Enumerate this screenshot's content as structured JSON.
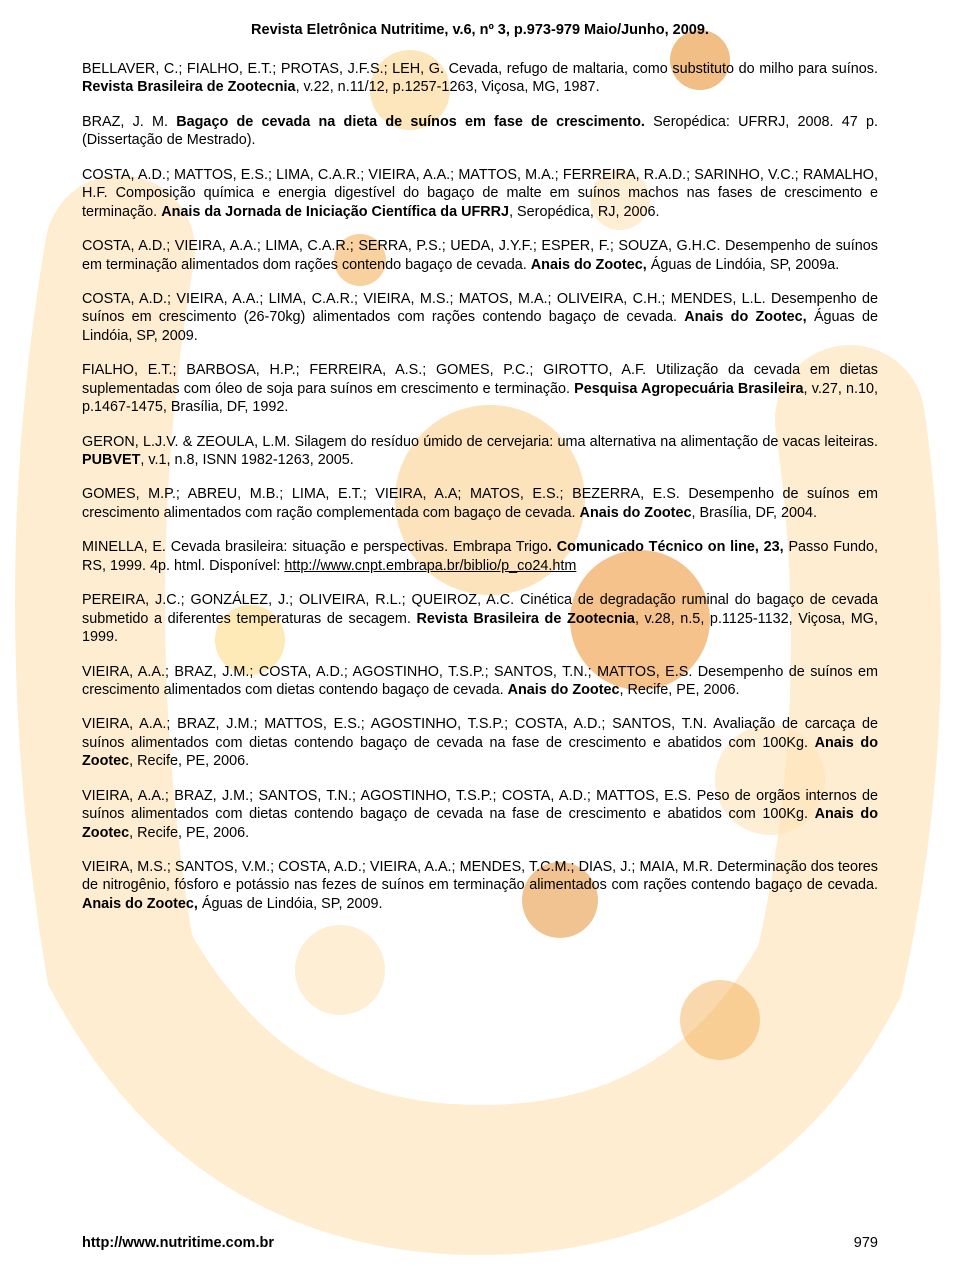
{
  "header": "Revista Eletrônica Nutritime, v.6, nº 3, p.973-979 Maio/Junho, 2009.",
  "refs": [
    "BELLAVER, C.; FIALHO, E.T.; PROTAS, J.F.S.; LEH, G. Cevada, refugo de maltaria, como substituto do milho para suínos. <b>Revista Brasileira de Zootecnia</b>, v.22, n.11/12, p.1257-1263, Viçosa, MG, 1987.",
    "BRAZ, J. M. <b>Bagaço de cevada na dieta de suínos em fase de crescimento.</b> Seropédica: UFRRJ, 2008. 47 p. (Dissertação de Mestrado).",
    "COSTA, A.D.; MATTOS, E.S.; LIMA, C.A.R.; VIEIRA, A.A.; MATTOS, M.A.; FERREIRA, R.A.D.; SARINHO, V.C.; RAMALHO, H.F. Composição química e energia digestível do bagaço de malte em suínos machos nas fases de crescimento e terminação. <b>Anais da Jornada de Iniciação Científica da UFRRJ</b>, Seropédica, RJ, 2006.",
    "COSTA, A.D.; VIEIRA, A.A.; LIMA, C.A.R.; SERRA, P.S.; UEDA, J.Y.F.; ESPER, F.; SOUZA, G.H.C. Desempenho de suínos em terminação alimentados dom rações contendo bagaço de cevada. <b>Anais do Zootec,</b> Águas de Lindóia, SP, 2009a.",
    "COSTA, A.D.; VIEIRA, A.A.; LIMA, C.A.R.; VIEIRA, M.S.; MATOS, M.A.; OLIVEIRA, C.H.; MENDES, L.L. Desempenho de suínos em crescimento (26-70kg) alimentados com rações contendo bagaço de cevada. <b>Anais do Zootec,</b> Águas de Lindóia, SP, 2009.",
    "FIALHO, E.T.; BARBOSA, H.P.; FERREIRA, A.S.; GOMES, P.C.; GIROTTO, A.F. Utilização da cevada em dietas suplementadas com óleo de soja para suínos em crescimento e terminação. <b>Pesquisa Agropecuária Brasileira</b>, v.27, n.10, p.1467-1475, Brasília, DF, 1992.",
    "GERON, L.J.V. & ZEOULA, L.M. Silagem do resíduo úmido de cervejaria: uma alternativa na alimentação de vacas leiteiras. <b>PUBVET</b>, v.1, n.8, ISNN 1982-1263, 2005.",
    "GOMES, M.P.; ABREU, M.B.; LIMA, E.T.; VIEIRA, A.A; MATOS, E.S.; BEZERRA, E.S. Desempenho de suínos em crescimento alimentados com ração complementada com bagaço de cevada. <b>Anais do Zootec</b>, Brasília, DF, 2004.",
    "MINELLA, E. Cevada brasileira: situação e perspectivas. Embrapa Trigo<b>. Comunicado Técnico on line, 23,</b> Passo Fundo, RS, 1999. 4p. html. Disponível: <span class='u'>http://www.cnpt.embrapa.br/biblio/p_co24.htm</span>",
    "PEREIRA, J.C.; GONZÁLEZ, J.; OLIVEIRA, R.L.; QUEIROZ, A.C. Cinética de degradação ruminal do bagaço de cevada submetido a diferentes temperaturas de secagem. <b>Revista Brasileira de Zootecnia</b>, v.28, n.5, p.1125-1132, Viçosa, MG, 1999.",
    "VIEIRA, A.A.; BRAZ, J.M.; COSTA, A.D.; AGOSTINHO, T.S.P.; SANTOS, T.N.; MATTOS, E.S. Desempenho de suínos em crescimento alimentados com dietas contendo bagaço de cevada. <b>Anais do Zootec</b>, Recife, PE, 2006.",
    "VIEIRA, A.A.; BRAZ, J.M.; MATTOS, E.S.; AGOSTINHO, T.S.P.; COSTA, A.D.; SANTOS, T.N. Avaliação de carcaça de suínos alimentados com dietas contendo bagaço de cevada na fase de crescimento e abatidos com 100Kg. <b>Anais do Zootec</b>, Recife, PE, 2006.",
    "VIEIRA, A.A.; BRAZ, J.M.; SANTOS, T.N.; AGOSTINHO, T.S.P.; COSTA, A.D.; MATTOS, E.S. Peso de orgãos internos de suínos alimentados com dietas contendo bagaço de cevada na fase de crescimento e abatidos com 100Kg. <b>Anais do Zootec</b>, Recife, PE, 2006.",
    "VIEIRA, M.S.; SANTOS, V.M.; COSTA, A.D.; VIEIRA, A.A.; MENDES, T.C.M.; DIAS, J.; MAIA, M.R. Determinação dos teores de nitrogênio, fósforo e potássio nas fezes de suínos em terminação alimentados com rações contendo bagaço de cevada. <b>Anais do Zootec,</b> Águas de Lindóia, SP, 2009."
  ],
  "footer_url": "http://www.nutritime.com.br",
  "page_number": "979",
  "wm": {
    "orange_light": "#fde3b7",
    "orange_med": "#f8bb5e",
    "orange_dark": "#e78b1f",
    "yellow": "#fcd97a",
    "brown": "#a8621f"
  }
}
